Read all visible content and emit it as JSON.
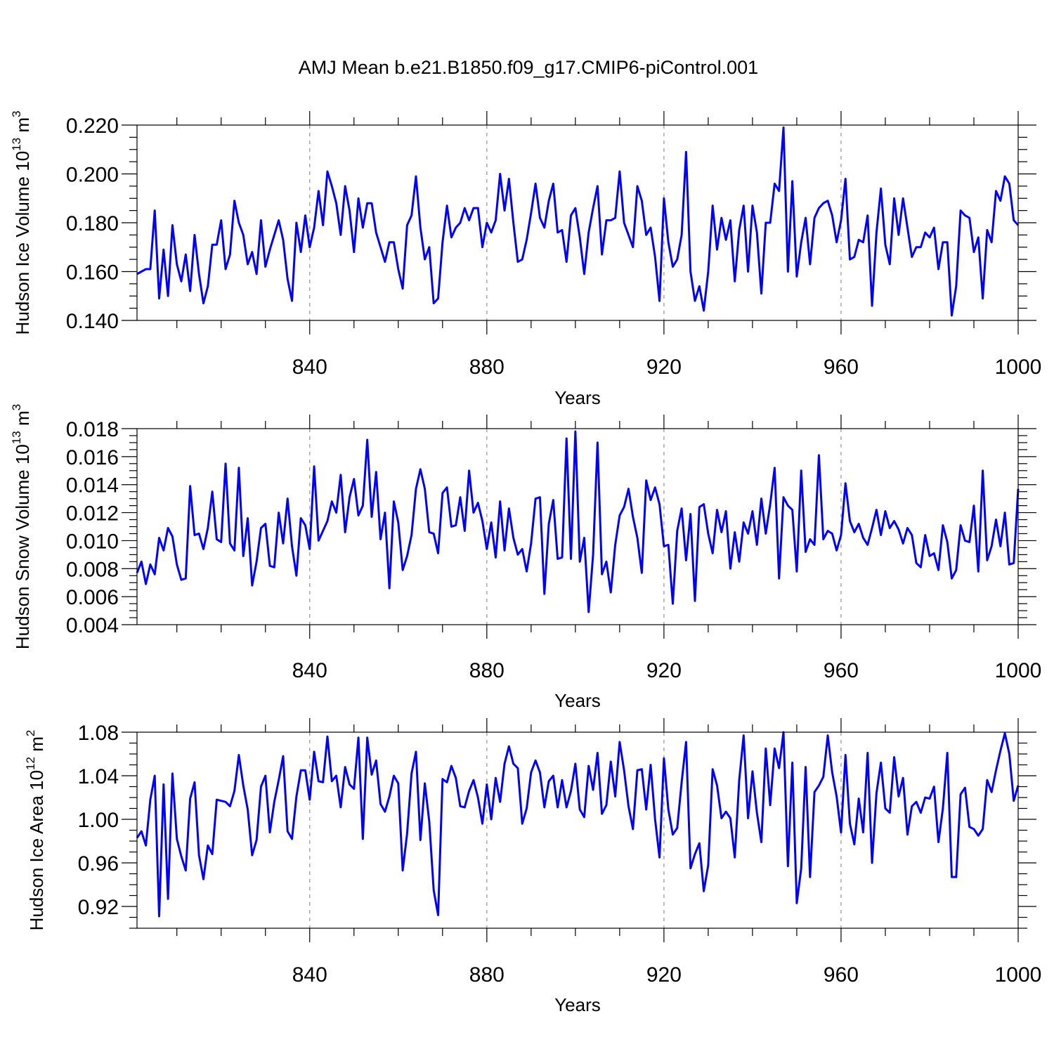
{
  "title": "AMJ Mean b.e21.B1850.f09_g17.CMIP6-piControl.001",
  "chart_data": [
    {
      "type": "line",
      "ylabel": "Hudson Ice Volume 10",
      "ylabel_exp": "13",
      "ylabel_unit": " m",
      "ylabel_unit_exp": "3",
      "xlabel": "Years",
      "xlim": [
        801,
        1000
      ],
      "ylim": [
        0.14,
        0.22
      ],
      "xticks": [
        840,
        880,
        920,
        960,
        1000
      ],
      "yticks": [
        0.14,
        0.16,
        0.18,
        0.2,
        0.22
      ],
      "ytick_labels": [
        "0.140",
        "0.160",
        "0.180",
        "0.200",
        "0.220"
      ],
      "color": "#0000ff",
      "grid": "dashed vertical at major x ticks",
      "series": [
        {
          "name": "Hudson Ice Volume",
          "x_start": 801,
          "x_step": 1,
          "values": [
            0.159,
            0.16,
            0.161,
            0.161,
            0.185,
            0.149,
            0.169,
            0.15,
            0.179,
            0.163,
            0.156,
            0.167,
            0.152,
            0.175,
            0.159,
            0.147,
            0.154,
            0.171,
            0.171,
            0.181,
            0.161,
            0.167,
            0.189,
            0.18,
            0.175,
            0.163,
            0.168,
            0.159,
            0.181,
            0.162,
            0.169,
            0.175,
            0.181,
            0.173,
            0.157,
            0.148,
            0.18,
            0.168,
            0.183,
            0.17,
            0.178,
            0.193,
            0.179,
            0.201,
            0.195,
            0.188,
            0.175,
            0.195,
            0.185,
            0.168,
            0.19,
            0.178,
            0.188,
            0.188,
            0.176,
            0.17,
            0.164,
            0.172,
            0.172,
            0.161,
            0.153,
            0.179,
            0.183,
            0.199,
            0.178,
            0.165,
            0.17,
            0.147,
            0.149,
            0.172,
            0.187,
            0.174,
            0.178,
            0.18,
            0.186,
            0.181,
            0.186,
            0.186,
            0.17,
            0.18,
            0.176,
            0.181,
            0.2,
            0.185,
            0.198,
            0.18,
            0.164,
            0.165,
            0.173,
            0.184,
            0.196,
            0.182,
            0.178,
            0.189,
            0.196,
            0.176,
            0.177,
            0.164,
            0.183,
            0.186,
            0.174,
            0.159,
            0.176,
            0.186,
            0.195,
            0.167,
            0.181,
            0.181,
            0.182,
            0.201,
            0.18,
            0.175,
            0.17,
            0.195,
            0.189,
            0.175,
            0.178,
            0.166,
            0.148,
            0.19,
            0.172,
            0.162,
            0.165,
            0.175,
            0.209,
            0.16,
            0.148,
            0.154,
            0.144,
            0.16,
            0.187,
            0.169,
            0.182,
            0.173,
            0.181,
            0.156,
            0.177,
            0.187,
            0.16,
            0.187,
            0.176,
            0.151,
            0.18,
            0.18,
            0.196,
            0.193,
            0.219,
            0.16,
            0.197,
            0.158,
            0.172,
            0.182,
            0.163,
            0.182,
            0.186,
            0.188,
            0.189,
            0.183,
            0.172,
            0.181,
            0.198,
            0.165,
            0.166,
            0.173,
            0.172,
            0.183,
            0.146,
            0.176,
            0.194,
            0.171,
            0.163,
            0.19,
            0.175,
            0.19,
            0.178,
            0.166,
            0.17,
            0.17,
            0.176,
            0.174,
            0.178,
            0.161,
            0.172,
            0.172,
            0.142,
            0.154,
            0.185,
            0.183,
            0.182,
            0.168,
            0.174,
            0.149,
            0.177,
            0.172,
            0.193,
            0.189,
            0.199,
            0.196,
            0.181,
            0.179
          ]
        }
      ]
    },
    {
      "type": "line",
      "ylabel": "Hudson Snow Volume 10",
      "ylabel_exp": "13",
      "ylabel_unit": " m",
      "ylabel_unit_exp": "3",
      "xlabel": "Years",
      "xlim": [
        801,
        1000
      ],
      "ylim": [
        0.004,
        0.018
      ],
      "xticks": [
        840,
        880,
        920,
        960,
        1000
      ],
      "yticks": [
        0.004,
        0.006,
        0.008,
        0.01,
        0.012,
        0.014,
        0.016,
        0.018
      ],
      "ytick_labels": [
        "0.004",
        "0.006",
        "0.008",
        "0.010",
        "0.012",
        "0.014",
        "0.016",
        "0.018"
      ],
      "color": "#0000ff",
      "grid": "dashed vertical at major x ticks",
      "series": [
        {
          "name": "Hudson Snow Volume",
          "x_start": 801,
          "x_step": 1,
          "values": [
            0.0077,
            0.0085,
            0.0069,
            0.0083,
            0.0076,
            0.0102,
            0.0093,
            0.0109,
            0.0103,
            0.0083,
            0.0072,
            0.0073,
            0.0139,
            0.0104,
            0.0105,
            0.0094,
            0.0109,
            0.0135,
            0.0101,
            0.0099,
            0.0155,
            0.0098,
            0.0093,
            0.0152,
            0.0089,
            0.0116,
            0.0068,
            0.0085,
            0.0109,
            0.0112,
            0.0082,
            0.0081,
            0.012,
            0.0098,
            0.013,
            0.0096,
            0.0075,
            0.0116,
            0.0111,
            0.0094,
            0.0153,
            0.01,
            0.0107,
            0.0114,
            0.0128,
            0.012,
            0.0147,
            0.0106,
            0.0131,
            0.0144,
            0.0118,
            0.0125,
            0.0172,
            0.0117,
            0.0149,
            0.0101,
            0.012,
            0.0066,
            0.0128,
            0.0113,
            0.0079,
            0.0089,
            0.0104,
            0.0137,
            0.0151,
            0.0137,
            0.0106,
            0.0105,
            0.0091,
            0.0134,
            0.0138,
            0.011,
            0.0111,
            0.0131,
            0.0107,
            0.015,
            0.012,
            0.0127,
            0.0114,
            0.0094,
            0.0113,
            0.0088,
            0.0128,
            0.0093,
            0.0123,
            0.0102,
            0.009,
            0.0094,
            0.0078,
            0.0098,
            0.013,
            0.0131,
            0.0062,
            0.0112,
            0.0129,
            0.0087,
            0.0088,
            0.0173,
            0.0087,
            0.0178,
            0.0085,
            0.0102,
            0.0049,
            0.009,
            0.017,
            0.0076,
            0.0085,
            0.0063,
            0.0097,
            0.0118,
            0.0124,
            0.0137,
            0.0117,
            0.0102,
            0.0077,
            0.0143,
            0.0129,
            0.0138,
            0.0126,
            0.0096,
            0.0097,
            0.0055,
            0.0107,
            0.0123,
            0.0086,
            0.0119,
            0.0057,
            0.0124,
            0.0126,
            0.0105,
            0.0091,
            0.0122,
            0.0106,
            0.0121,
            0.008,
            0.0106,
            0.0085,
            0.0113,
            0.0105,
            0.0121,
            0.0097,
            0.013,
            0.0105,
            0.0126,
            0.0152,
            0.0073,
            0.0131,
            0.0125,
            0.0122,
            0.0078,
            0.015,
            0.0092,
            0.0101,
            0.0097,
            0.0161,
            0.0101,
            0.0107,
            0.0105,
            0.0093,
            0.0104,
            0.0141,
            0.0114,
            0.0106,
            0.0112,
            0.0102,
            0.0097,
            0.0109,
            0.0122,
            0.0104,
            0.0121,
            0.0109,
            0.0114,
            0.0108,
            0.0098,
            0.0109,
            0.0104,
            0.0084,
            0.0081,
            0.0104,
            0.0089,
            0.0091,
            0.0079,
            0.0111,
            0.0099,
            0.0073,
            0.0079,
            0.0111,
            0.01,
            0.0099,
            0.0125,
            0.0078,
            0.015,
            0.0086,
            0.0096,
            0.0115,
            0.0096,
            0.012,
            0.0083,
            0.0084,
            0.0137
          ]
        }
      ]
    },
    {
      "type": "line",
      "ylabel": "Hudson Ice Area 10",
      "ylabel_exp": "12",
      "ylabel_unit": " m",
      "ylabel_unit_exp": "2",
      "xlabel": "Years",
      "xlim": [
        801,
        1000
      ],
      "ylim": [
        0.9,
        1.08
      ],
      "xticks": [
        840,
        880,
        920,
        960,
        1000
      ],
      "yticks": [
        0.92,
        0.96,
        1.0,
        1.04,
        1.08
      ],
      "ytick_labels": [
        "0.92",
        "0.96",
        "1.00",
        "1.04",
        "1.08"
      ],
      "color": "#0000ff",
      "grid": "dashed vertical at major x ticks",
      "series": [
        {
          "name": "Hudson Ice Area",
          "x_start": 801,
          "x_step": 1,
          "values": [
            0.983,
            0.989,
            0.976,
            1.018,
            1.04,
            0.911,
            1.032,
            0.927,
            1.042,
            0.982,
            0.966,
            0.953,
            1.019,
            1.034,
            0.967,
            0.945,
            0.976,
            0.968,
            1.018,
            1.017,
            1.016,
            1.012,
            1.026,
            1.059,
            1.031,
            1.009,
            0.967,
            0.981,
            1.03,
            1.04,
            0.988,
            1.016,
            1.036,
            1.058,
            0.989,
            0.982,
            1.021,
            1.045,
            1.045,
            1.018,
            1.062,
            1.035,
            1.034,
            1.076,
            1.035,
            1.04,
            1.011,
            1.048,
            1.032,
            1.028,
            1.075,
            0.982,
            1.075,
            1.041,
            1.054,
            1.014,
            1.007,
            1.021,
            1.04,
            1.033,
            0.953,
            0.987,
            1.042,
            1.062,
            0.981,
            1.033,
            0.998,
            0.935,
            0.912,
            1.037,
            1.034,
            1.049,
            1.038,
            1.012,
            1.011,
            1.026,
            1.036,
            1.02,
            0.996,
            1.032,
            1.0,
            1.038,
            1.016,
            1.051,
            1.067,
            1.051,
            1.047,
            0.996,
            1.01,
            1.043,
            1.054,
            1.043,
            1.011,
            1.035,
            1.04,
            1.011,
            1.036,
            1.011,
            1.026,
            1.051,
            1.009,
            1.002,
            1.049,
            1.027,
            1.061,
            1.005,
            1.013,
            1.053,
            1.021,
            1.071,
            1.045,
            1.012,
            0.991,
            1.045,
            1.046,
            1.009,
            1.05,
            1.0,
            0.965,
            1.056,
            1.009,
            0.986,
            0.992,
            1.034,
            1.071,
            0.955,
            0.968,
            0.978,
            0.934,
            0.958,
            1.046,
            1.031,
            1.001,
            1.007,
            1.001,
            0.965,
            1.036,
            1.077,
            1.001,
            1.044,
            1.006,
            0.979,
            1.065,
            1.013,
            1.065,
            1.047,
            1.08,
            0.957,
            1.052,
            0.923,
            0.955,
            1.048,
            0.947,
            1.025,
            1.031,
            1.039,
            1.077,
            1.043,
            1.021,
            0.988,
            1.059,
            0.996,
            0.977,
            1.019,
            0.988,
            1.061,
            0.96,
            1.024,
            1.052,
            1.01,
            1.006,
            1.057,
            1.021,
            1.038,
            0.986,
            1.012,
            1.016,
            1.006,
            1.02,
            1.019,
            1.03,
            0.979,
            1.01,
            1.061,
            0.947,
            0.947,
            1.023,
            1.029,
            0.993,
            0.991,
            0.985,
            0.991,
            1.036,
            1.025,
            1.045,
            1.063,
            1.079,
            1.06,
            1.017,
            1.031
          ]
        }
      ]
    }
  ]
}
